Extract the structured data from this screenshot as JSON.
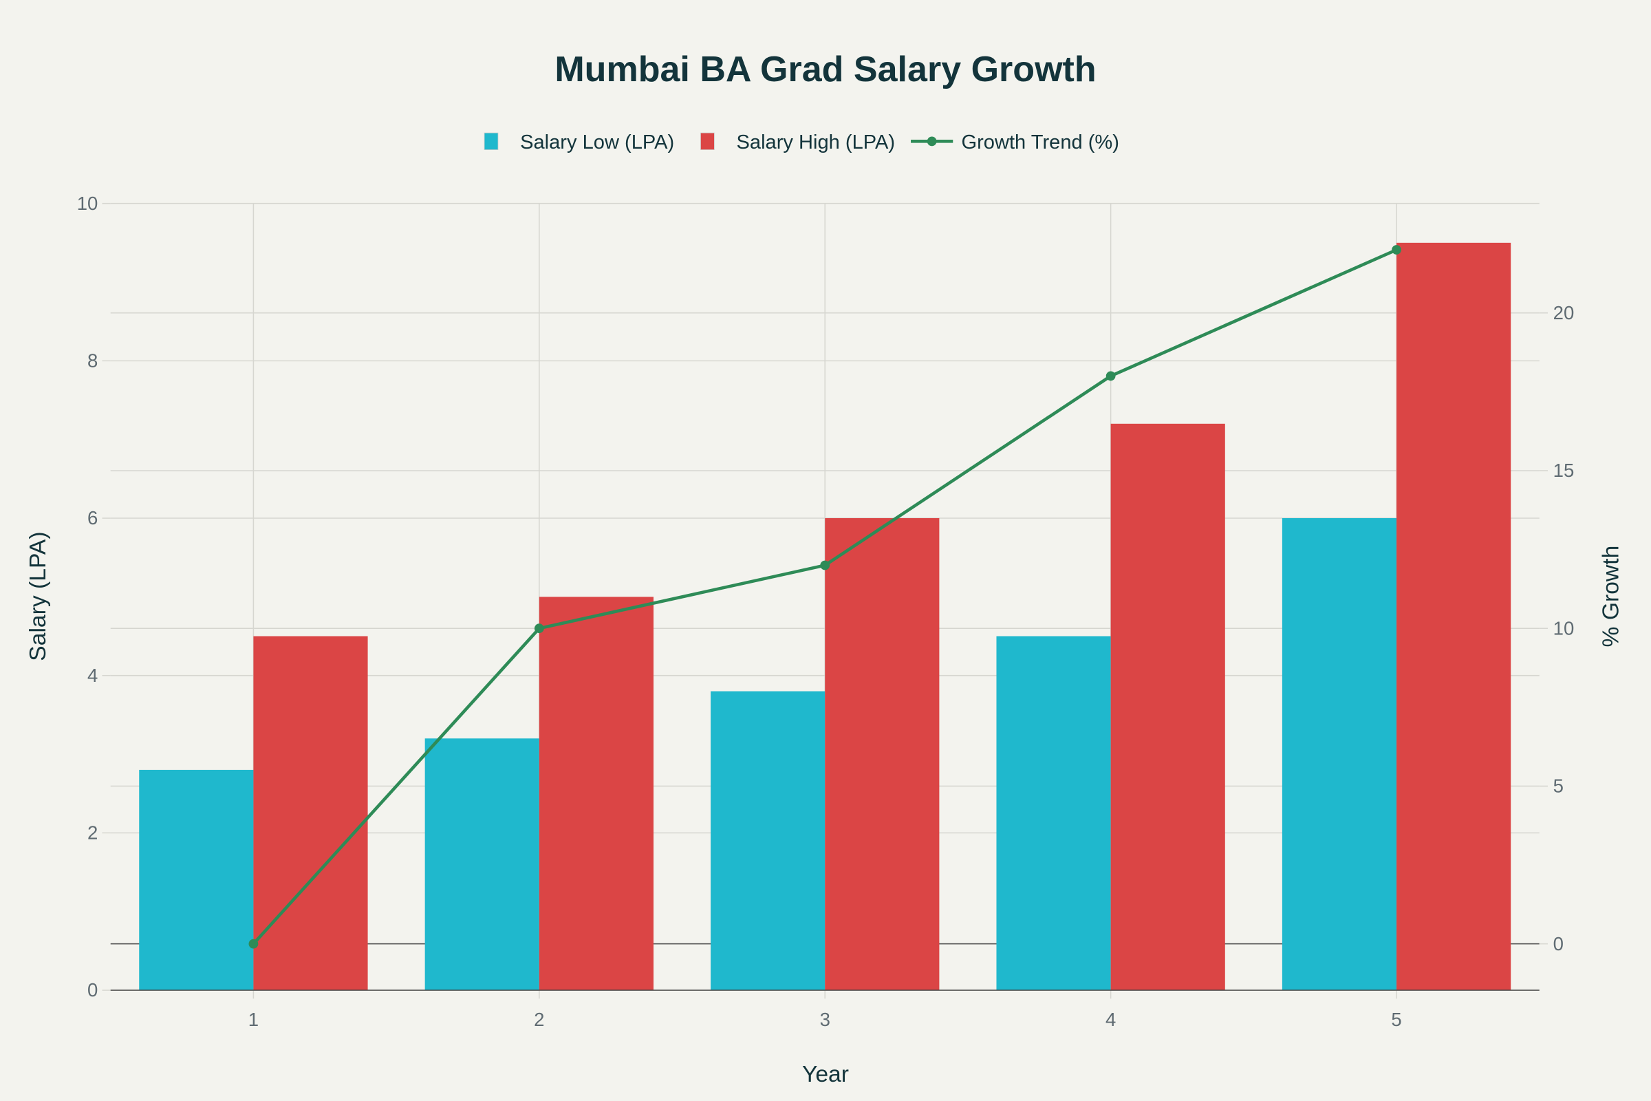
{
  "chart_data": {
    "type": "bar",
    "title": "Mumbai BA Grad Salary Growth",
    "xlabel": "Year",
    "ylabel": "Salary (LPA)",
    "y2label": "% Growth",
    "categories": [
      "1",
      "2",
      "3",
      "4",
      "5"
    ],
    "ylim": [
      0,
      10
    ],
    "y2lim": [
      -1.47,
      23.47
    ],
    "yticks": [
      "0",
      "2",
      "4",
      "6",
      "8",
      "10"
    ],
    "y2ticks": [
      "0",
      "5",
      "10",
      "15",
      "20"
    ],
    "grid": true,
    "legend_position": "top-center",
    "series": [
      {
        "name": "Salary Low (LPA)",
        "kind": "bar",
        "axis": "y",
        "color": "#1FB8CD",
        "values": [
          2.8,
          3.2,
          3.8,
          4.5,
          6.0
        ]
      },
      {
        "name": "Salary High (LPA)",
        "kind": "bar",
        "axis": "y",
        "color": "#DB4545",
        "values": [
          4.5,
          5.0,
          6.0,
          7.2,
          9.5
        ]
      },
      {
        "name": "Growth Trend (%)",
        "kind": "line+markers",
        "axis": "y2",
        "color": "#2E8B57",
        "values": [
          0,
          10,
          12,
          18,
          22
        ]
      }
    ]
  }
}
